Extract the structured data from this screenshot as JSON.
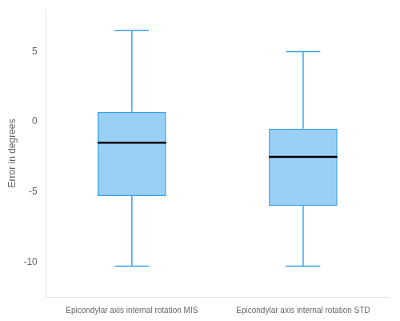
{
  "chart_data": {
    "type": "box",
    "ylabel": "Error in degrees",
    "categories": [
      "Epicondylar axis internal rotation MIS",
      "Epicondylar axis internal rotation STD"
    ],
    "values": [
      {
        "whislo": -10.3,
        "q1": -5.3,
        "med": -1.5,
        "q3": 0.7,
        "whishi": 6.5
      },
      {
        "whislo": -10.3,
        "q1": -6.0,
        "med": -2.5,
        "q3": -0.5,
        "whishi": 5.0
      }
    ],
    "ylim": [
      -12.5,
      8.0
    ],
    "yticks": [
      -10,
      -5,
      0,
      5
    ],
    "grid": false
  }
}
